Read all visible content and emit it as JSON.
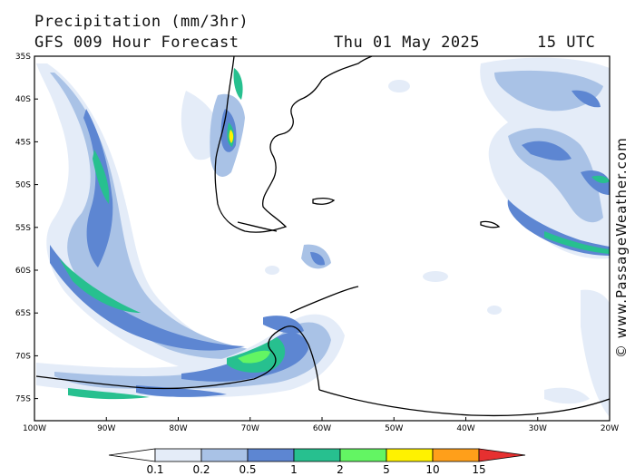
{
  "header": {
    "title": "Precipitation (mm/3hr)",
    "subtitle": "GFS 009 Hour Forecast",
    "date": "Thu 01 May 2025",
    "time": "15 UTC"
  },
  "map": {
    "lat_labels": [
      "35S",
      "40S",
      "45S",
      "50S",
      "55S",
      "60S",
      "65S",
      "70S",
      "75S"
    ],
    "lon_labels": [
      "100W",
      "90W",
      "80W",
      "70W",
      "60W",
      "50W",
      "40W",
      "30W",
      "20W"
    ]
  },
  "watermark": "© www.PassageWeather.com",
  "legend": {
    "labels": [
      "0.1",
      "0.2",
      "0.5",
      "1",
      "2",
      "5",
      "10",
      "15"
    ],
    "colors": [
      "#e4ecf8",
      "#a9c2e6",
      "#5d86d2",
      "#27c08f",
      "#63f563",
      "#fff200",
      "#ff9f1a",
      "#e63030"
    ],
    "low_color": "#ffffff"
  }
}
